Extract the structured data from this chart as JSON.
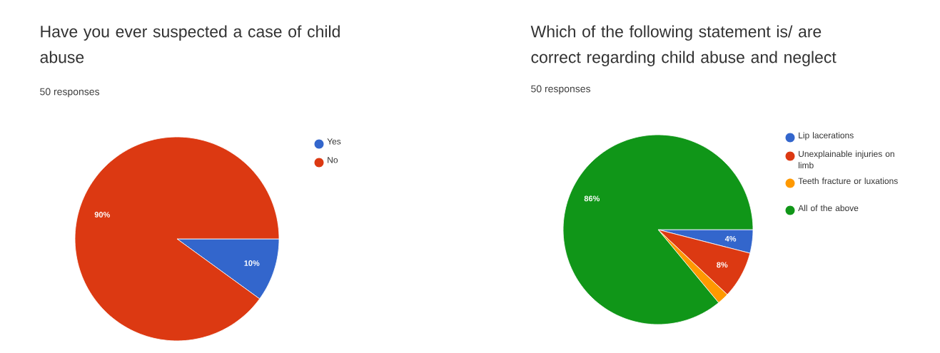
{
  "chart_data": [
    {
      "type": "pie",
      "title": "Have you ever suspected a case of child abuse",
      "subtitle": "50 responses",
      "categories": [
        "Yes",
        "No"
      ],
      "values": [
        10,
        90
      ],
      "colors": [
        "#3366cc",
        "#dc3912"
      ],
      "value_labels": [
        "10%",
        "90%"
      ],
      "legend": "right"
    },
    {
      "type": "pie",
      "title": "Which of the following statement is/ are correct regarding child abuse and neglect",
      "subtitle": "50 responses",
      "categories": [
        "Lip lacerations",
        "Unexplainable injuries on limb",
        "Teeth fracture or luxations",
        "All of the above"
      ],
      "values": [
        4,
        8,
        2,
        86
      ],
      "colors": [
        "#3366cc",
        "#dc3912",
        "#ff9900",
        "#109618"
      ],
      "value_labels": [
        "4%",
        "8%",
        null,
        "86%"
      ],
      "legend": "right"
    }
  ]
}
